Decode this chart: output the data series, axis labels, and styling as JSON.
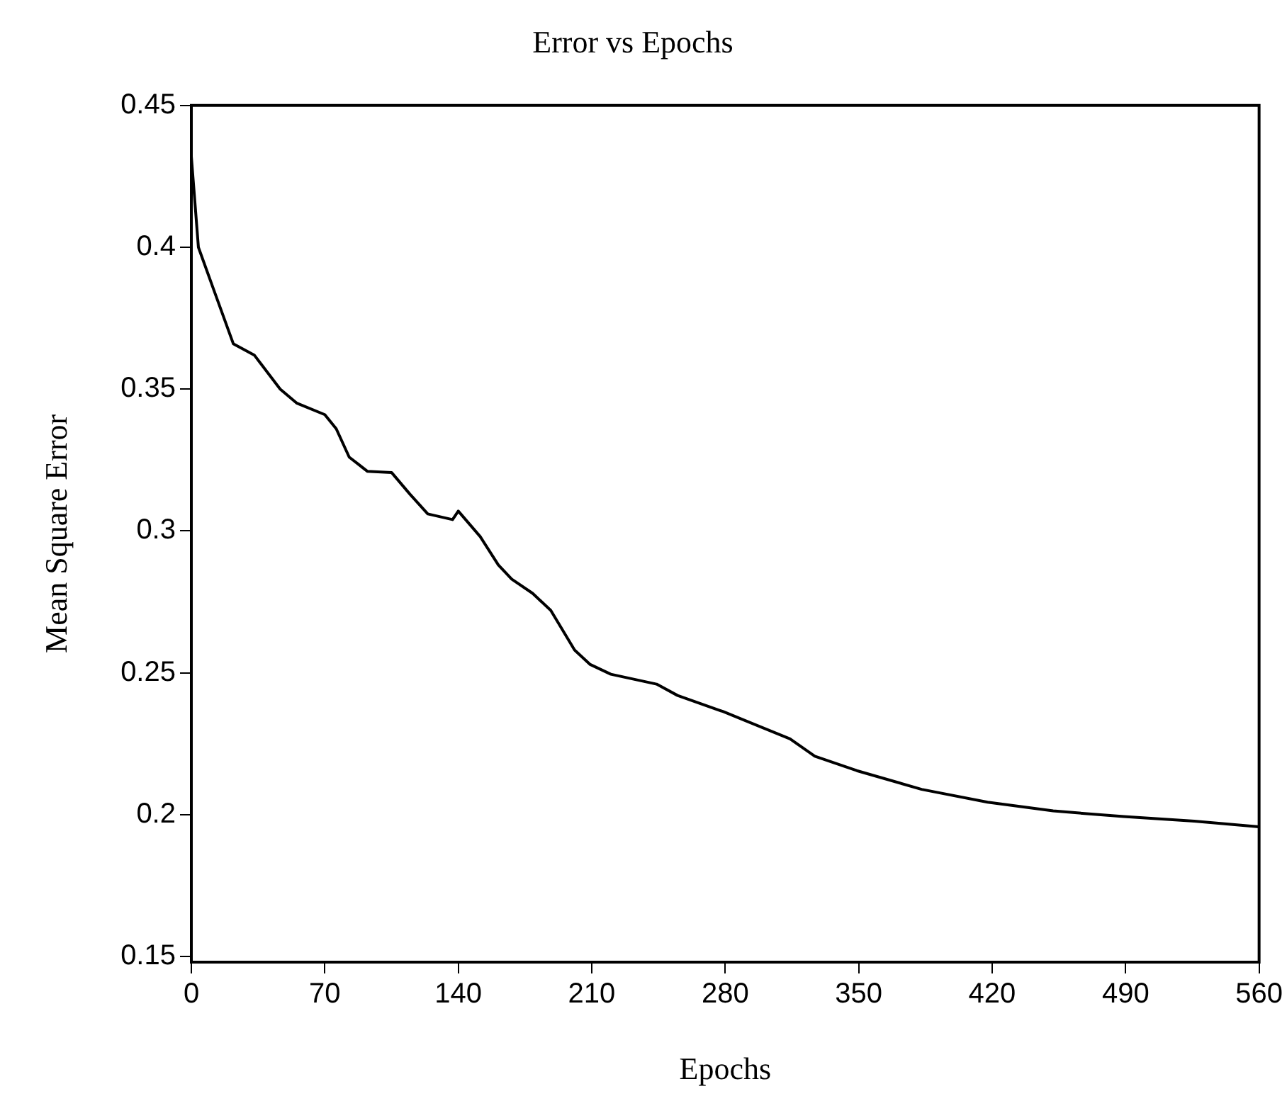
{
  "chart_data": {
    "type": "line",
    "title": "Error vs Epochs",
    "xlabel": "Epochs",
    "ylabel": "Mean Square Error",
    "x": [
      0,
      3.7,
      12.3,
      22,
      33,
      46.6,
      55.4,
      70,
      76,
      82.8,
      92.4,
      105,
      114.6,
      124,
      137,
      140,
      151.5,
      161,
      168,
      179,
      188.5,
      201,
      209,
      220,
      244,
      255,
      279,
      314,
      327,
      349,
      383,
      417.6,
      452,
      489,
      526,
      560
    ],
    "series": [
      {
        "color": "#000000",
        "values": [
          0.432,
          0.4,
          0.384,
          0.366,
          0.362,
          0.35,
          0.345,
          0.341,
          0.336,
          0.326,
          0.321,
          0.3206,
          0.313,
          0.306,
          0.304,
          0.307,
          0.298,
          0.288,
          0.283,
          0.278,
          0.272,
          0.258,
          0.253,
          0.2495,
          0.246,
          0.242,
          0.2363,
          0.2267,
          0.2206,
          0.2155,
          0.2089,
          0.2044,
          0.2013,
          0.1993,
          0.1977,
          0.1957
        ]
      }
    ],
    "xlim": [
      0,
      560
    ],
    "xticks": [
      0,
      70,
      140,
      210,
      280,
      350,
      420,
      490,
      560
    ],
    "ylim": [
      0.148,
      0.45
    ],
    "yticks": [
      0.15,
      0.2,
      0.25,
      0.3,
      0.35,
      0.4,
      0.45
    ],
    "grid": false,
    "legend": false,
    "marker": "none",
    "line_style": "solid"
  }
}
